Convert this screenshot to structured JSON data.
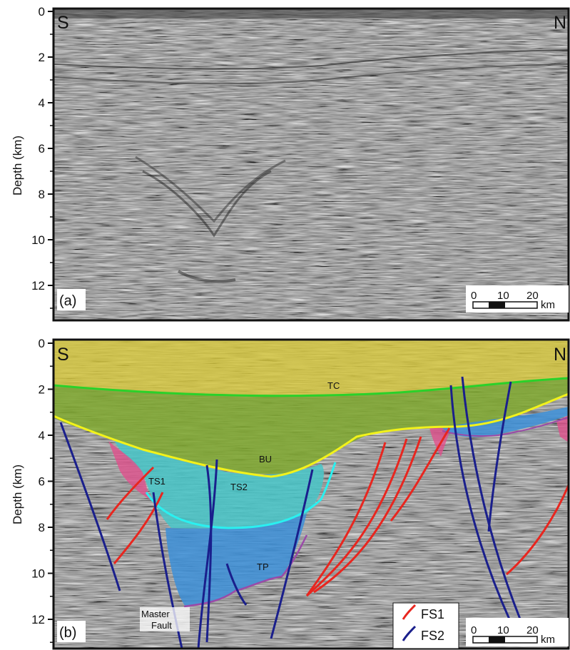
{
  "panel_a": {
    "label": "(a)",
    "left_end": "S",
    "right_end": "N",
    "ylabel": "Depth (km)",
    "yticks": [
      "0",
      "2",
      "4",
      "6",
      "8",
      "10",
      "12"
    ],
    "scale": {
      "ticks": [
        "0",
        "10",
        "20"
      ],
      "unit": "km"
    }
  },
  "panel_b": {
    "label": "(b)",
    "left_end": "S",
    "right_end": "N",
    "ylabel": "Depth (km)",
    "yticks": [
      "0",
      "2",
      "4",
      "6",
      "8",
      "10",
      "12"
    ],
    "scale": {
      "ticks": [
        "0",
        "10",
        "20"
      ],
      "unit": "km"
    },
    "horizons": {
      "tc": "TC",
      "bu": "BU",
      "ts1": "TS1",
      "ts2": "TS2",
      "tp": "TP",
      "master_fault_1": "Master",
      "master_fault_2": "Fault"
    },
    "legend": [
      {
        "name": "FS1",
        "color": "#e8261f"
      },
      {
        "name": "FS2",
        "color": "#1a1f8c"
      }
    ],
    "colors": {
      "unit_top": "#d8c93c",
      "unit_mid": "#7fa82e",
      "unit_lower_cyan": "#46c6c8",
      "unit_lower_blue": "#3c8fd8",
      "unit_pink": "#e0508c",
      "tc_line": "#2ad12a",
      "bu_line": "#f2f21a",
      "ts_line": "#2af0f0",
      "tp_line": "#9a4aa8"
    }
  }
}
